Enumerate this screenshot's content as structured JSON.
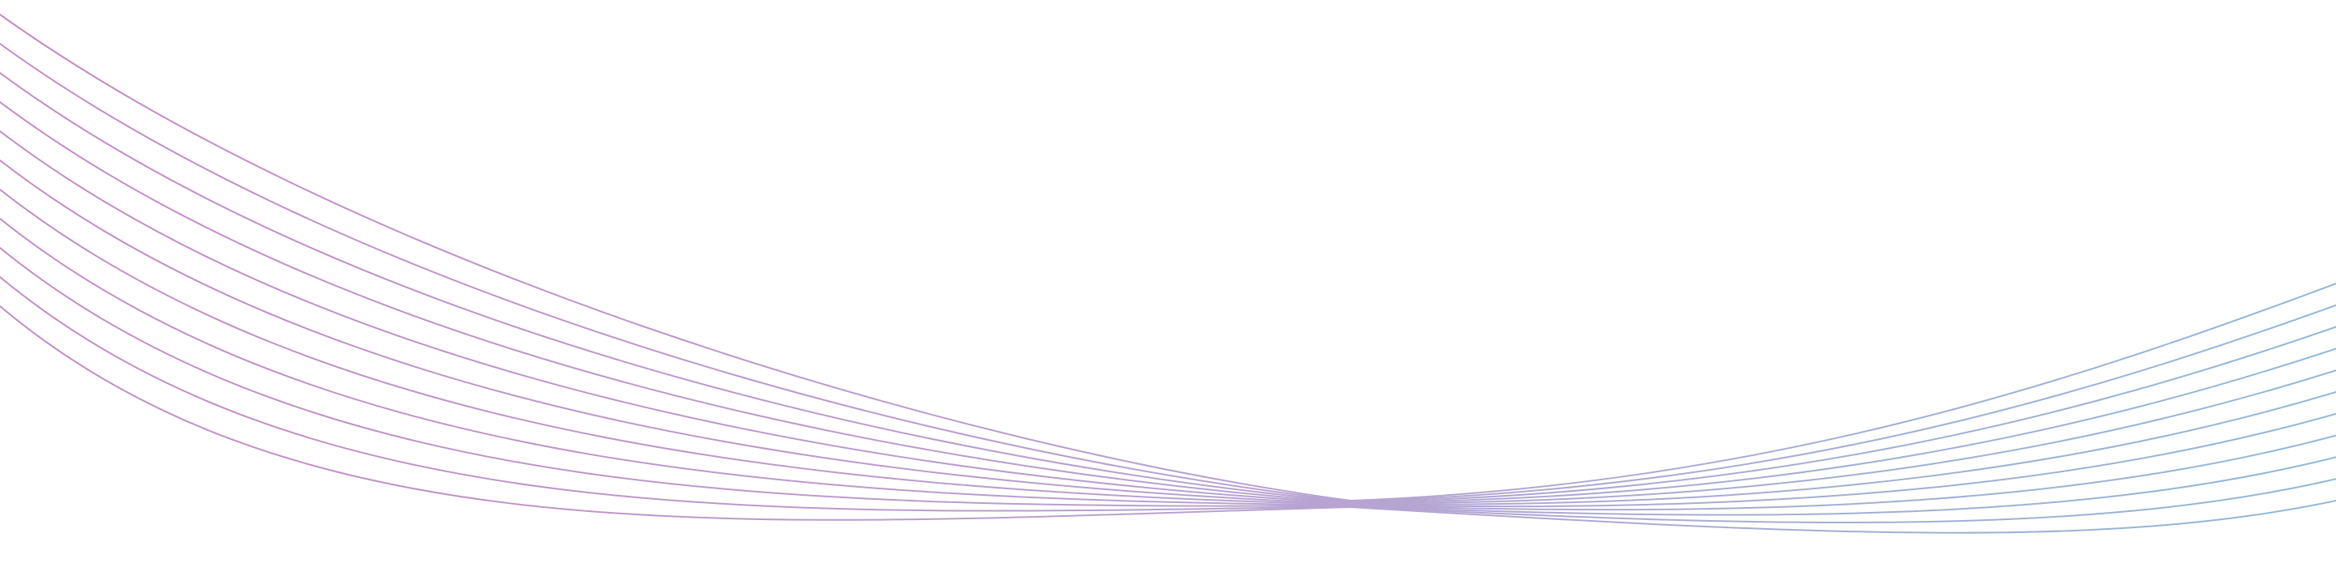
{
  "decoration": {
    "type": "wave-lines",
    "line_count": 11,
    "colors": {
      "left": "#c48ac4",
      "middle": "#b6a4d2",
      "right": "#90b8d6",
      "background": "#ffffff"
    }
  }
}
